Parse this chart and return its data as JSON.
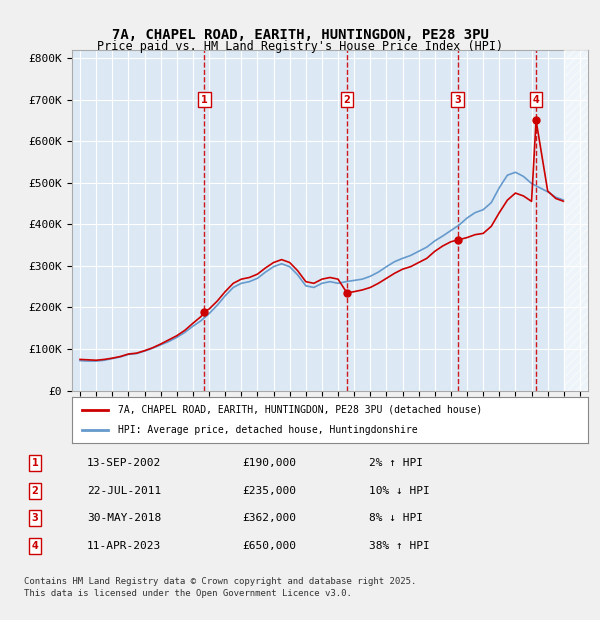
{
  "title_line1": "7A, CHAPEL ROAD, EARITH, HUNTINGDON, PE28 3PU",
  "title_line2": "Price paid vs. HM Land Registry's House Price Index (HPI)",
  "background_color": "#dce9f5",
  "plot_bg_color": "#dce9f5",
  "grid_color": "#ffffff",
  "ylabel_ticks": [
    "£0",
    "£100K",
    "£200K",
    "£300K",
    "£400K",
    "£500K",
    "£600K",
    "£700K",
    "£800K"
  ],
  "ytick_values": [
    0,
    100000,
    200000,
    300000,
    400000,
    500000,
    600000,
    700000,
    800000
  ],
  "xlim_start": 1994.5,
  "xlim_end": 2026.5,
  "ylim_min": 0,
  "ylim_max": 820000,
  "sale_events": [
    {
      "label": "1",
      "date": "13-SEP-2002",
      "price": 190000,
      "hpi_pct": "2%",
      "hpi_dir": "↑",
      "x_year": 2002.71
    },
    {
      "label": "2",
      "date": "22-JUL-2011",
      "price": 235000,
      "hpi_pct": "10%",
      "hpi_dir": "↓",
      "x_year": 2011.55
    },
    {
      "label": "3",
      "date": "30-MAY-2018",
      "price": 362000,
      "hpi_pct": "8%",
      "hpi_dir": "↓",
      "x_year": 2018.41
    },
    {
      "label": "4",
      "date": "11-APR-2023",
      "price": 650000,
      "hpi_pct": "38%",
      "hpi_dir": "↑",
      "x_year": 2023.28
    }
  ],
  "legend_line1": "7A, CHAPEL ROAD, EARITH, HUNTINGDON, PE28 3PU (detached house)",
  "legend_line2": "HPI: Average price, detached house, Huntingdonshire",
  "footer_line1": "Contains HM Land Registry data © Crown copyright and database right 2025.",
  "footer_line2": "This data is licensed under the Open Government Licence v3.0.",
  "red_line_color": "#cc0000",
  "blue_line_color": "#6699cc",
  "hpi_red_data_x": [
    1995.0,
    1995.5,
    1996.0,
    1996.5,
    1997.0,
    1997.5,
    1998.0,
    1998.5,
    1999.0,
    1999.5,
    2000.0,
    2000.5,
    2001.0,
    2001.5,
    2002.0,
    2002.5,
    2002.71,
    2003.0,
    2003.5,
    2004.0,
    2004.5,
    2005.0,
    2005.5,
    2006.0,
    2006.5,
    2007.0,
    2007.5,
    2008.0,
    2008.5,
    2009.0,
    2009.5,
    2010.0,
    2010.5,
    2011.0,
    2011.55,
    2012.0,
    2012.5,
    2013.0,
    2013.5,
    2014.0,
    2014.5,
    2015.0,
    2015.5,
    2016.0,
    2016.5,
    2017.0,
    2017.5,
    2018.0,
    2018.41,
    2019.0,
    2019.5,
    2020.0,
    2020.5,
    2021.0,
    2021.5,
    2022.0,
    2022.5,
    2023.0,
    2023.28,
    2024.0,
    2024.5,
    2025.0
  ],
  "hpi_red_data_y": [
    75000,
    74000,
    73000,
    75000,
    78000,
    82000,
    88000,
    90000,
    96000,
    103000,
    112000,
    122000,
    132000,
    145000,
    162000,
    178000,
    190000,
    196000,
    215000,
    238000,
    258000,
    268000,
    272000,
    280000,
    295000,
    308000,
    315000,
    308000,
    288000,
    262000,
    258000,
    268000,
    272000,
    268000,
    235000,
    238000,
    242000,
    248000,
    258000,
    270000,
    282000,
    292000,
    298000,
    308000,
    318000,
    335000,
    348000,
    358000,
    362000,
    368000,
    375000,
    378000,
    395000,
    428000,
    458000,
    475000,
    468000,
    455000,
    650000,
    480000,
    462000,
    455000
  ],
  "hpi_blue_data_x": [
    1995.0,
    1995.5,
    1996.0,
    1996.5,
    1997.0,
    1997.5,
    1998.0,
    1998.5,
    1999.0,
    1999.5,
    2000.0,
    2000.5,
    2001.0,
    2001.5,
    2002.0,
    2002.5,
    2003.0,
    2003.5,
    2004.0,
    2004.5,
    2005.0,
    2005.5,
    2006.0,
    2006.5,
    2007.0,
    2007.5,
    2008.0,
    2008.5,
    2009.0,
    2009.5,
    2010.0,
    2010.5,
    2011.0,
    2011.5,
    2012.0,
    2012.5,
    2013.0,
    2013.5,
    2014.0,
    2014.5,
    2015.0,
    2015.5,
    2016.0,
    2016.5,
    2017.0,
    2017.5,
    2018.0,
    2018.5,
    2019.0,
    2019.5,
    2020.0,
    2020.5,
    2021.0,
    2021.5,
    2022.0,
    2022.5,
    2023.0,
    2023.5,
    2024.0,
    2024.5,
    2025.0
  ],
  "hpi_blue_data_y": [
    72000,
    71000,
    71000,
    73000,
    77000,
    81000,
    87000,
    89000,
    95000,
    102000,
    110000,
    118000,
    128000,
    140000,
    155000,
    168000,
    185000,
    205000,
    228000,
    248000,
    258000,
    262000,
    270000,
    285000,
    298000,
    305000,
    298000,
    278000,
    252000,
    248000,
    258000,
    262000,
    258000,
    262000,
    265000,
    268000,
    275000,
    285000,
    298000,
    310000,
    318000,
    325000,
    335000,
    345000,
    360000,
    372000,
    385000,
    398000,
    415000,
    428000,
    435000,
    452000,
    488000,
    518000,
    525000,
    515000,
    498000,
    488000,
    478000,
    465000,
    458000
  ]
}
